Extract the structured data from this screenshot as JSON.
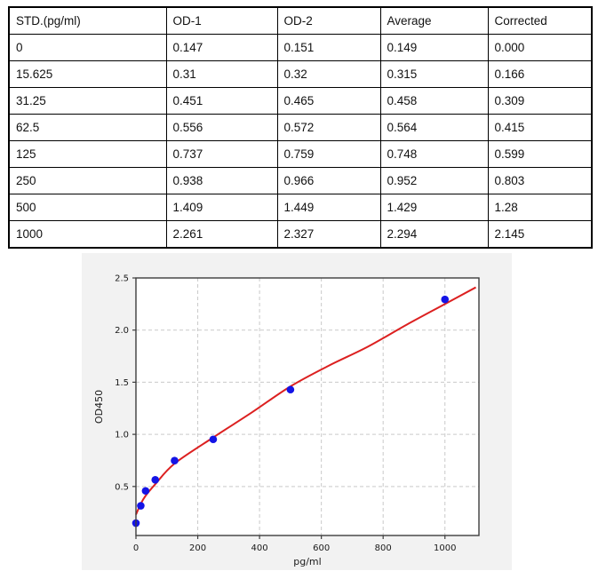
{
  "table": {
    "headers": [
      "STD.(pg/ml)",
      "OD-1",
      "OD-2",
      "Average",
      "Corrected"
    ],
    "rows": [
      [
        "0",
        "0.147",
        "0.151",
        "0.149",
        "0.000"
      ],
      [
        "15.625",
        "0.31",
        "0.32",
        "0.315",
        "0.166"
      ],
      [
        "31.25",
        "0.451",
        "0.465",
        "0.458",
        "0.309"
      ],
      [
        "62.5",
        "0.556",
        "0.572",
        "0.564",
        "0.415"
      ],
      [
        "125",
        "0.737",
        "0.759",
        "0.748",
        "0.599"
      ],
      [
        "250",
        "0.938",
        "0.966",
        "0.952",
        "0.803"
      ],
      [
        "500",
        "1.409",
        "1.449",
        "1.429",
        "1.28"
      ],
      [
        "1000",
        "2.261",
        "2.327",
        "2.294",
        "2.145"
      ]
    ]
  },
  "chart_data": {
    "type": "scatter",
    "title": "",
    "xlabel": "pg/ml",
    "ylabel": "OD450",
    "xlim": [
      0,
      1110
    ],
    "ylim": [
      0.03,
      2.5
    ],
    "x_ticks": [
      0,
      200,
      400,
      600,
      800,
      1000
    ],
    "y_ticks": [
      0.5,
      1.0,
      1.5,
      2.0,
      2.5
    ],
    "grid": true,
    "points": [
      {
        "x": 0,
        "y": 0.149
      },
      {
        "x": 15.625,
        "y": 0.315
      },
      {
        "x": 31.25,
        "y": 0.458
      },
      {
        "x": 62.5,
        "y": 0.564
      },
      {
        "x": 125,
        "y": 0.748
      },
      {
        "x": 250,
        "y": 0.952
      },
      {
        "x": 500,
        "y": 1.429
      },
      {
        "x": 1000,
        "y": 2.294
      }
    ],
    "fit_curve_points": [
      [
        0,
        0.23
      ],
      [
        15,
        0.33
      ],
      [
        31,
        0.41
      ],
      [
        62,
        0.52
      ],
      [
        125,
        0.72
      ],
      [
        250,
        0.97
      ],
      [
        375,
        1.21
      ],
      [
        500,
        1.46
      ],
      [
        625,
        1.66
      ],
      [
        750,
        1.84
      ],
      [
        875,
        2.05
      ],
      [
        1000,
        2.25
      ],
      [
        1100,
        2.41
      ]
    ],
    "colors": {
      "point": "#1414e6",
      "curve": "#dc2020",
      "figure_bg": "#f2f2f2",
      "plot_bg": "#ffffff",
      "grid": "#c9c9c9",
      "spine": "#3d3d3d"
    }
  }
}
